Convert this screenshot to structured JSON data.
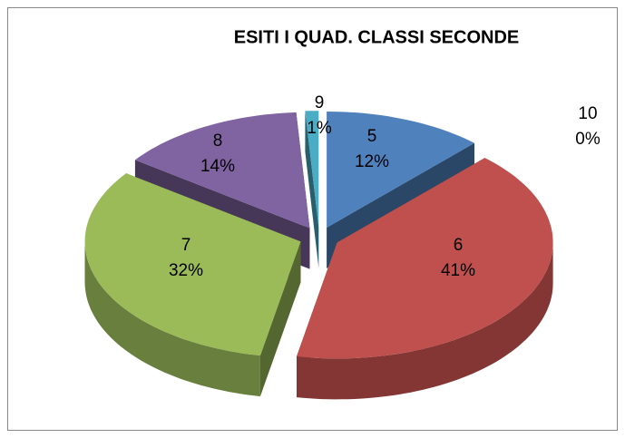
{
  "chart_data": {
    "type": "pie",
    "title": "ESITI I QUAD. CLASSI SECONDE",
    "categories": [
      "5",
      "6",
      "7",
      "8",
      "9",
      "10"
    ],
    "values": [
      12,
      41,
      32,
      14,
      1,
      0
    ],
    "value_labels": [
      "12%",
      "41%",
      "32%",
      "14%",
      "1%",
      "0%"
    ],
    "colors": [
      "#4f81bd",
      "#c0504d",
      "#9bbb59",
      "#8064a2",
      "#4bacc6",
      "#f79646"
    ]
  }
}
